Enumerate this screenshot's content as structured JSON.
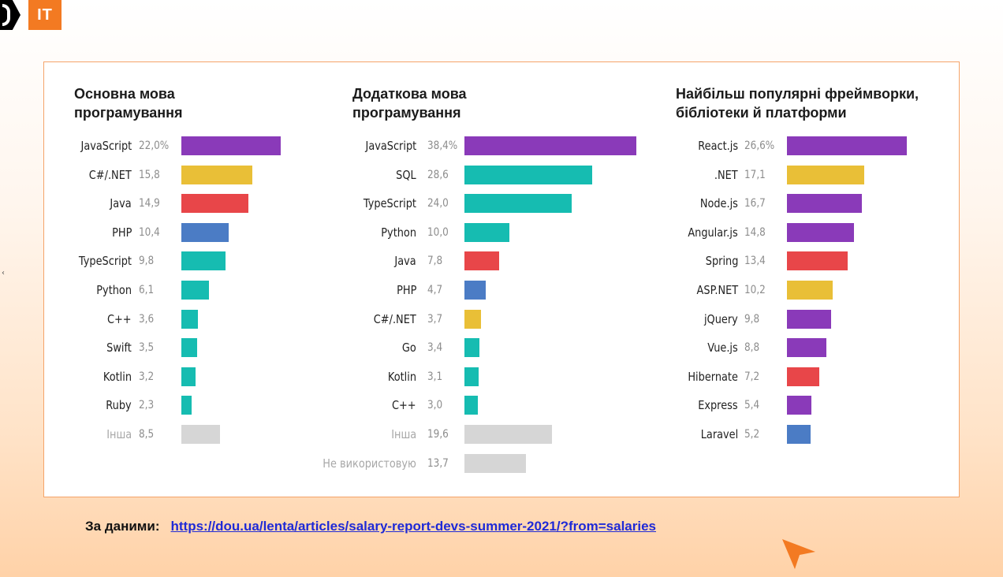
{
  "brand": {
    "text": "IT",
    "accent": "#f37a22"
  },
  "colors": {
    "purple": "#8a3ab9",
    "yellow": "#e9bf37",
    "red": "#e84649",
    "blue": "#4b7cc5",
    "teal": "#16bcb1",
    "gray": "#d6d6d6"
  },
  "chart_data": [
    {
      "type": "bar",
      "orientation": "horizontal",
      "title": "Основна мова\nпрограмування",
      "xlim": [
        0,
        22
      ],
      "categories": [
        "JavaScript",
        "C#/.NET",
        "Java",
        "PHP",
        "TypeScript",
        "Python",
        "C++",
        "Swift",
        "Kotlin",
        "Ruby",
        "Інша"
      ],
      "value_labels": [
        "22,0%",
        "15,8",
        "14,9",
        "10,4",
        "9,8",
        "6,1",
        "3,6",
        "3,5",
        "3,2",
        "2,3",
        "8,5"
      ],
      "values": [
        22.0,
        15.8,
        14.9,
        10.4,
        9.8,
        6.1,
        3.6,
        3.5,
        3.2,
        2.3,
        8.5
      ],
      "colors": [
        "purple",
        "yellow",
        "red",
        "blue",
        "teal",
        "teal",
        "teal",
        "teal",
        "teal",
        "teal",
        "gray"
      ]
    },
    {
      "type": "bar",
      "orientation": "horizontal",
      "title": "Додаткова мова\nпрограмування",
      "xlim": [
        0,
        38.4
      ],
      "categories": [
        "JavaScript",
        "SQL",
        "TypeScript",
        "Python",
        "Java",
        "PHP",
        "C#/.NET",
        "Go",
        "Kotlin",
        "C++",
        "Інша",
        "Не використовую"
      ],
      "value_labels": [
        "38,4%",
        "28,6",
        "24,0",
        "10,0",
        "7,8",
        "4,7",
        "3,7",
        "3,4",
        "3,1",
        "3,0",
        "19,6",
        "13,7"
      ],
      "values": [
        38.4,
        28.6,
        24.0,
        10.0,
        7.8,
        4.7,
        3.7,
        3.4,
        3.1,
        3.0,
        19.6,
        13.7
      ],
      "colors": [
        "purple",
        "teal",
        "teal",
        "teal",
        "red",
        "blue",
        "yellow",
        "teal",
        "teal",
        "teal",
        "gray",
        "gray"
      ]
    },
    {
      "type": "bar",
      "orientation": "horizontal",
      "title": "Найбільш популярні фреймворки,\nбібліотеки й платформи",
      "xlim": [
        0,
        26.6
      ],
      "categories": [
        "React.js",
        ".NET",
        "Node.js",
        "Angular.js",
        "Spring",
        "ASP.NET",
        "jQuery",
        "Vue.js",
        "Hibernate",
        "Express",
        "Laravel"
      ],
      "value_labels": [
        "26,6%",
        "17,1",
        "16,7",
        "14,8",
        "13,4",
        "10,2",
        "9,8",
        "8,8",
        "7,2",
        "5,4",
        "5,2"
      ],
      "values": [
        26.6,
        17.1,
        16.7,
        14.8,
        13.4,
        10.2,
        9.8,
        8.8,
        7.2,
        5.4,
        5.2
      ],
      "colors": [
        "purple",
        "yellow",
        "purple",
        "purple",
        "red",
        "yellow",
        "purple",
        "purple",
        "red",
        "purple",
        "blue"
      ]
    }
  ],
  "source": {
    "label": "За даними:",
    "url": "https://dou.ua/lenta/articles/salary-report-devs-summer-2021/?from=salaries"
  }
}
